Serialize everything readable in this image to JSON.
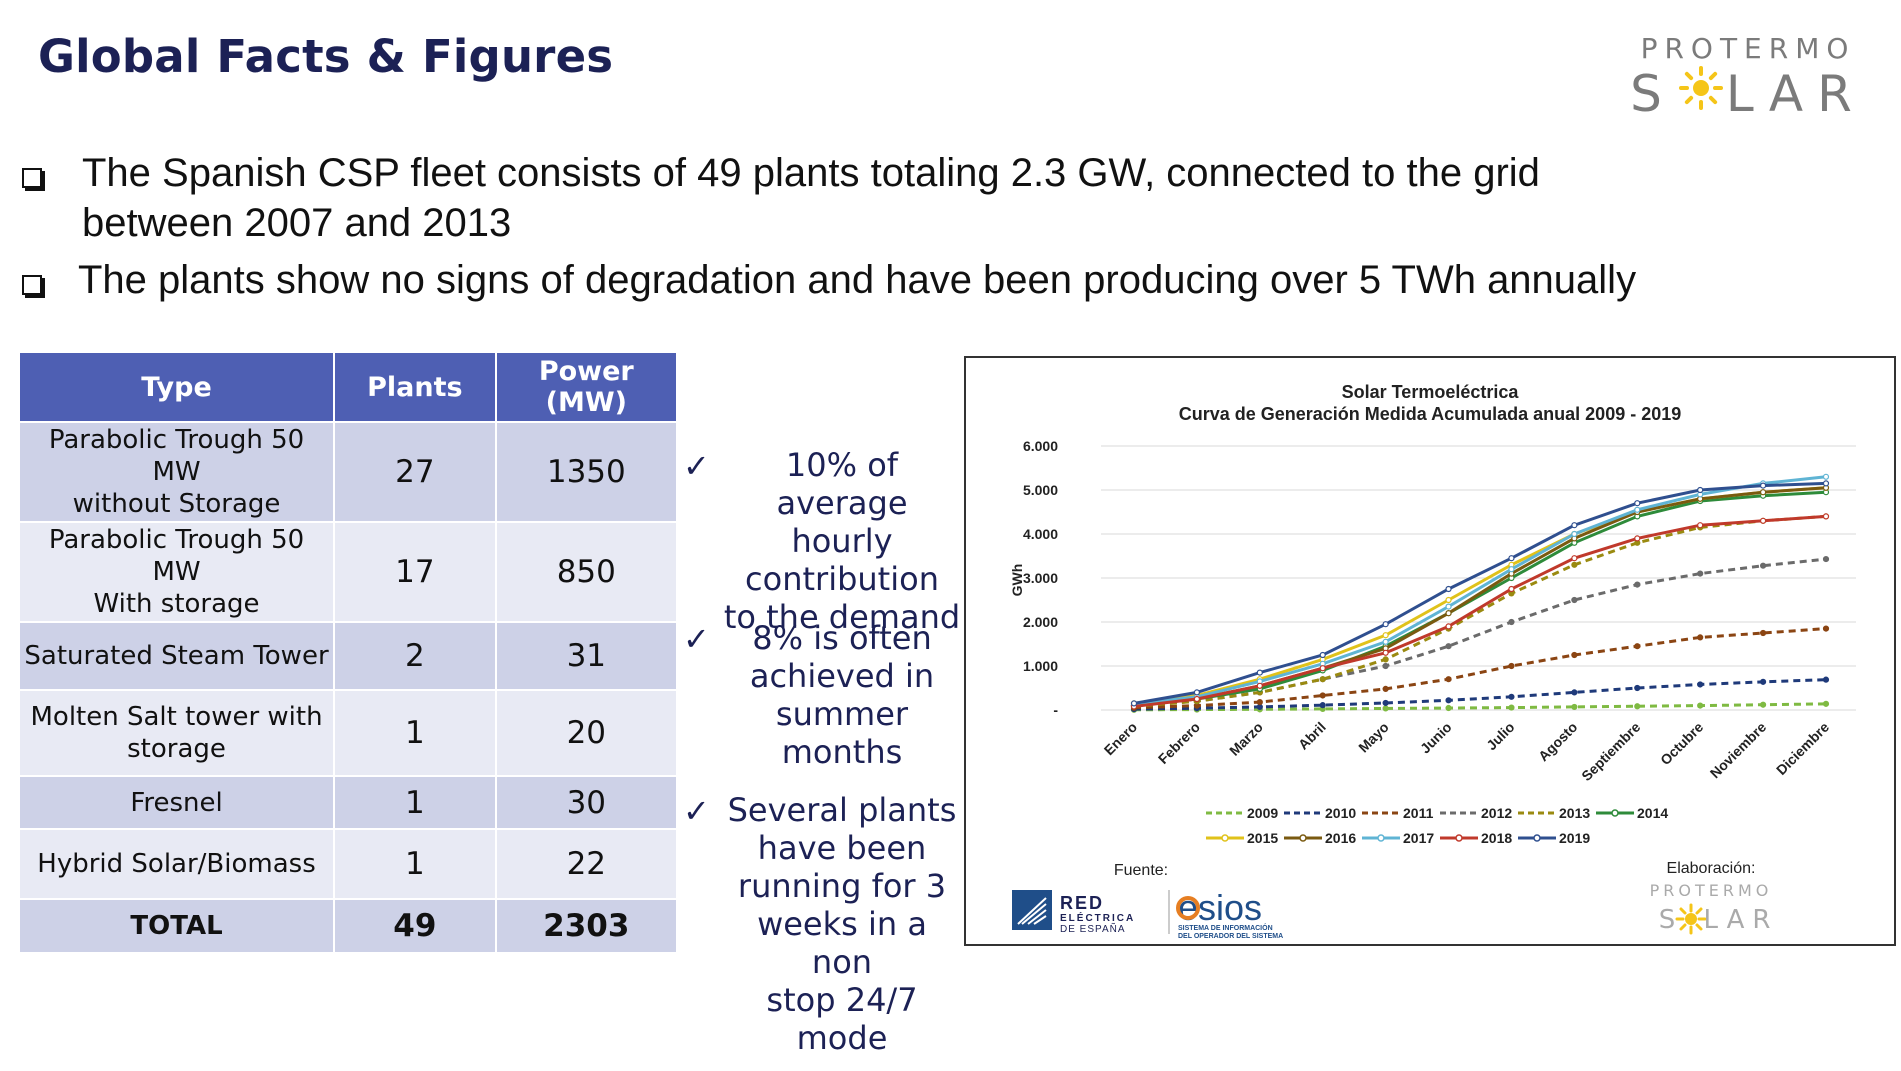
{
  "header": {
    "title": "Global Facts & Figures",
    "logo_line1": "PROTERMO",
    "logo_line2a": "S",
    "logo_line2b": "LAR"
  },
  "bullets": [
    {
      "line1": "The Spanish CSP fleet consists of 49 plants totaling 2.3 GW, connected to the grid",
      "line2": "between 2007 and 2013"
    },
    {
      "line1": "The plants show no signs of degradation and have been producing over 5 TWh annually"
    }
  ],
  "table": {
    "headers": [
      "Type",
      "Plants",
      "Power (MW)"
    ],
    "rows": [
      {
        "type_l1": "Parabolic Trough 50 MW",
        "type_l2": "without Storage",
        "plants": "27",
        "power": "1350"
      },
      {
        "type_l1": "Parabolic Trough 50 MW",
        "type_l2": "With storage",
        "plants": "17",
        "power": "850"
      },
      {
        "type_l1": "Saturated Steam Tower",
        "type_l2": "",
        "plants": "2",
        "power": "31"
      },
      {
        "type_l1": "Molten Salt tower with",
        "type_l2": "storage",
        "plants": "1",
        "power": "20"
      },
      {
        "type_l1": "Fresnel",
        "type_l2": "",
        "plants": "1",
        "power": "30"
      },
      {
        "type_l1": "Hybrid Solar/Biomass",
        "type_l2": "",
        "plants": "1",
        "power": "22"
      }
    ],
    "total": {
      "label": "TOTAL",
      "plants": "49",
      "power": "2303"
    }
  },
  "notes": [
    {
      "check": "✓",
      "lines": [
        "10% of average",
        "hourly",
        "contribution",
        "to the demand"
      ]
    },
    {
      "check": "✓",
      "lines": [
        "8% is often",
        "achieved in",
        "summer",
        "months"
      ]
    },
    {
      "check": "✓",
      "lines": [
        "Several plants",
        "have been",
        "running for 3",
        "weeks in a non",
        "stop 24/7",
        "mode"
      ]
    }
  ],
  "chart_data": {
    "type": "line",
    "title": "Solar Termoeléctrica",
    "subtitle": "Curva de Generación Medida Acumulada anual 2009 - 2019",
    "ylabel": "GWh",
    "ylim": [
      0,
      6000
    ],
    "yticks": [
      "-",
      "1.000",
      "2.000",
      "3.000",
      "4.000",
      "5.000",
      "6.000"
    ],
    "categories": [
      "Enero",
      "Febrero",
      "Marzo",
      "Abril",
      "Mayo",
      "Junio",
      "Julio",
      "Agosto",
      "Septiembre",
      "Octubre",
      "Noviembre",
      "Diciembre"
    ],
    "series": [
      {
        "name": "2009",
        "color": "#7fba42",
        "dashed": true,
        "values": [
          5,
          10,
          15,
          25,
          35,
          45,
          55,
          70,
          85,
          100,
          120,
          140
        ]
      },
      {
        "name": "2010",
        "color": "#1f3a7a",
        "dashed": true,
        "values": [
          20,
          40,
          70,
          110,
          160,
          220,
          300,
          400,
          500,
          580,
          640,
          690
        ]
      },
      {
        "name": "2011",
        "color": "#8b4513",
        "dashed": true,
        "values": [
          50,
          100,
          180,
          330,
          480,
          700,
          1000,
          1250,
          1450,
          1650,
          1750,
          1850
        ]
      },
      {
        "name": "2012",
        "color": "#6b6b6b",
        "dashed": true,
        "values": [
          100,
          200,
          400,
          700,
          1000,
          1450,
          2000,
          2500,
          2850,
          3100,
          3280,
          3430
        ]
      },
      {
        "name": "2013",
        "color": "#9a8a10",
        "dashed": true,
        "values": [
          80,
          200,
          400,
          700,
          1150,
          1850,
          2650,
          3300,
          3800,
          4150,
          4300,
          4400
        ]
      },
      {
        "name": "2014",
        "color": "#2e8b3a",
        "dashed": false,
        "values": [
          100,
          250,
          480,
          900,
          1450,
          2200,
          3000,
          3800,
          4400,
          4750,
          4870,
          4950
        ]
      },
      {
        "name": "2015",
        "color": "#e0c21a",
        "dashed": false,
        "values": [
          150,
          330,
          700,
          1150,
          1700,
          2500,
          3300,
          4000,
          4500,
          4800,
          4950,
          5050
        ]
      },
      {
        "name": "2016",
        "color": "#7a5a10",
        "dashed": false,
        "values": [
          100,
          250,
          550,
          950,
          1400,
          2200,
          3100,
          3900,
          4500,
          4800,
          4950,
          5050
        ]
      },
      {
        "name": "2017",
        "color": "#5fb4d4",
        "dashed": false,
        "values": [
          130,
          300,
          650,
          1050,
          1550,
          2350,
          3200,
          4000,
          4550,
          4900,
          5150,
          5300
        ]
      },
      {
        "name": "2018",
        "color": "#c0392b",
        "dashed": false,
        "values": [
          80,
          250,
          550,
          950,
          1300,
          1900,
          2750,
          3450,
          3900,
          4200,
          4300,
          4400
        ]
      },
      {
        "name": "2019",
        "color": "#2f4f8f",
        "dashed": false,
        "values": [
          150,
          400,
          850,
          1250,
          1950,
          2750,
          3450,
          4200,
          4700,
          5000,
          5100,
          5150
        ]
      }
    ],
    "legend_position": "bottom",
    "source_label": "Fuente:",
    "source_logo1_a": "RED",
    "source_logo1_b": "ELÉCTRICA",
    "source_logo1_c": "DE ESPAÑA",
    "source_logo2": "esios",
    "source_logo2_sub1": "SISTEMA DE INFORMACIÓN",
    "source_logo2_sub2": "DEL OPERADOR DEL SISTEMA",
    "elab_label": "Elaboración:",
    "elab_logo1": "PROTERMO",
    "elab_logo2a": "S",
    "elab_logo2b": "LAR"
  }
}
